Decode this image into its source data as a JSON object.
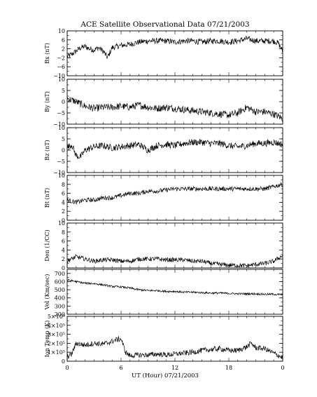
{
  "title": "ACE Satellite Observational Data   07/21/2003",
  "xlabel": "UT (Hour)   07/21/2003",
  "x_tick_labels": [
    "0",
    "6",
    "12",
    "18",
    "0"
  ],
  "colors": {
    "line": "#000000",
    "axes": "#000000",
    "background": "#ffffff"
  },
  "chart_data": [
    {
      "type": "line",
      "name": "Bx",
      "ylabel": "Bx (nT)",
      "xlim": [
        0,
        24
      ],
      "ylim": [
        -10,
        10
      ],
      "yticks": [
        -10,
        -6,
        -2,
        2,
        6,
        10
      ],
      "ytick_labels": [
        "−10",
        "−6",
        "−2",
        "2",
        "6",
        "10"
      ],
      "x": [
        0,
        0.5,
        1,
        1.5,
        2,
        2.5,
        3,
        3.5,
        4,
        4.5,
        5,
        5.5,
        6,
        7,
        8,
        9,
        10,
        11,
        12,
        13,
        14,
        15,
        16,
        17,
        18,
        19,
        20,
        21,
        22,
        23,
        23.5,
        24
      ],
      "values": [
        -1.5,
        -0.5,
        1.0,
        2.5,
        3.0,
        2.0,
        1.5,
        2.5,
        1.0,
        -2.0,
        2.5,
        3.0,
        3.5,
        4.0,
        5.0,
        5.5,
        5.5,
        5.5,
        5.0,
        5.5,
        5.5,
        5.0,
        5.5,
        5.5,
        5.0,
        5.5,
        6.5,
        5.5,
        5.5,
        5.5,
        4.5,
        1.0
      ],
      "noise": 1.3
    },
    {
      "type": "line",
      "name": "By",
      "ylabel": "By (nT)",
      "xlim": [
        0,
        24
      ],
      "ylim": [
        -10,
        10
      ],
      "yticks": [
        -10,
        -5,
        0,
        5,
        10
      ],
      "ytick_labels": [
        "−10",
        "−5",
        "0",
        "5",
        "10"
      ],
      "x": [
        0,
        1,
        2,
        3,
        4,
        5,
        6,
        7,
        8,
        9,
        10,
        11,
        12,
        13,
        14,
        15,
        16,
        17,
        18,
        19,
        20,
        21,
        22,
        23,
        24
      ],
      "values": [
        1.5,
        0.0,
        -2.0,
        -3.0,
        -2.5,
        -2.5,
        -2.0,
        -2.5,
        -1.5,
        -2.5,
        -3.0,
        -2.5,
        -3.0,
        -3.5,
        -4.0,
        -4.5,
        -5.0,
        -5.5,
        -6.0,
        -5.0,
        -2.5,
        -4.5,
        -4.5,
        -5.5,
        -7.5
      ],
      "noise": 1.6
    },
    {
      "type": "line",
      "name": "Bz",
      "ylabel": "Bz (nT)",
      "xlim": [
        0,
        24
      ],
      "ylim": [
        -10,
        10
      ],
      "yticks": [
        -10,
        -5,
        0,
        5,
        10
      ],
      "ytick_labels": [
        "−10",
        "−5",
        "0",
        "5",
        "10"
      ],
      "x": [
        0,
        0.5,
        1,
        1.5,
        2,
        3,
        4,
        5,
        6,
        7,
        8,
        9,
        10,
        11,
        12,
        13,
        14,
        15,
        16,
        17,
        18,
        19,
        20,
        21,
        22,
        23,
        24
      ],
      "values": [
        1.0,
        2.5,
        -2.5,
        -3.0,
        0.0,
        1.5,
        2.0,
        1.0,
        1.5,
        2.0,
        2.5,
        0.0,
        2.0,
        2.5,
        2.0,
        3.0,
        3.5,
        3.5,
        3.0,
        3.0,
        2.0,
        1.5,
        2.0,
        3.0,
        3.0,
        3.5,
        2.5
      ],
      "noise": 1.5
    },
    {
      "type": "line",
      "name": "Bt",
      "ylabel": "Bt (nT)",
      "xlim": [
        0,
        24
      ],
      "ylim": [
        0,
        10
      ],
      "yticks": [
        0,
        2,
        4,
        6,
        8,
        10
      ],
      "ytick_labels": [
        "0",
        "2",
        "4",
        "6",
        "8",
        "10"
      ],
      "x": [
        0,
        1,
        2,
        3,
        4,
        5,
        6,
        7,
        8,
        9,
        10,
        12,
        14,
        16,
        18,
        20,
        22,
        23,
        24
      ],
      "values": [
        4.5,
        4.0,
        4.5,
        4.5,
        5.0,
        5.0,
        5.5,
        6.0,
        6.0,
        6.5,
        6.5,
        7.0,
        7.0,
        7.0,
        7.0,
        7.0,
        7.0,
        7.5,
        8.0
      ],
      "noise": 0.5
    },
    {
      "type": "line",
      "name": "Den",
      "ylabel": "Den (1/CC)",
      "xlim": [
        0,
        24
      ],
      "ylim": [
        0,
        10
      ],
      "yticks": [
        0,
        2,
        4,
        6,
        8,
        10
      ],
      "ytick_labels": [
        "0",
        "2",
        "4",
        "6",
        "8",
        "10"
      ],
      "x": [
        0,
        1,
        2,
        3,
        4,
        5,
        6,
        7,
        8,
        9,
        10,
        11,
        12,
        13,
        14,
        15,
        16,
        17,
        18,
        19,
        20,
        21,
        22,
        23,
        24
      ],
      "values": [
        1.5,
        2.5,
        2.0,
        1.5,
        1.8,
        1.8,
        1.5,
        1.5,
        2.0,
        2.0,
        2.0,
        1.8,
        1.8,
        1.8,
        1.5,
        1.5,
        1.0,
        0.8,
        0.6,
        0.6,
        0.5,
        0.8,
        1.0,
        1.5,
        2.8
      ],
      "noise": 0.5
    },
    {
      "type": "line",
      "name": "Vel",
      "ylabel": "Vel (Km/sec)",
      "xlim": [
        0,
        24
      ],
      "ylim": [
        200,
        750
      ],
      "yticks": [
        200,
        300,
        400,
        500,
        600,
        700
      ],
      "ytick_labels": [
        "200",
        "300",
        "400",
        "500",
        "600",
        "700"
      ],
      "x": [
        0,
        1,
        2,
        3,
        4,
        5,
        6,
        7,
        8,
        9,
        10,
        11,
        12,
        13,
        14,
        15,
        16,
        17,
        18,
        19,
        20,
        21,
        22,
        23,
        24
      ],
      "values": [
        620,
        600,
        580,
        575,
        560,
        540,
        535,
        520,
        500,
        490,
        490,
        480,
        480,
        470,
        470,
        465,
        460,
        460,
        455,
        450,
        450,
        450,
        445,
        445,
        440
      ],
      "noise": 12
    },
    {
      "type": "line",
      "name": "Ion Temp",
      "ylabel": "Ion Temp (K)",
      "xlim": [
        0,
        24
      ],
      "ylim": [
        0,
        500000
      ],
      "yticks": [
        0,
        100000,
        200000,
        300000,
        400000,
        500000
      ],
      "ytick_labels": [
        "0",
        "1×10⁵",
        "2×10⁵",
        "3×10⁵",
        "4×10⁵",
        "5×10⁵"
      ],
      "x": [
        0,
        0.5,
        1,
        2,
        3,
        4,
        5,
        5.5,
        6,
        6.5,
        7,
        8,
        9,
        10,
        11,
        12,
        13,
        14,
        15,
        16,
        17,
        18,
        19,
        20,
        20.5,
        21,
        22,
        23,
        24
      ],
      "values": [
        50000,
        80000,
        200000,
        180000,
        200000,
        190000,
        220000,
        240000,
        250000,
        100000,
        60000,
        70000,
        70000,
        80000,
        70000,
        80000,
        90000,
        100000,
        120000,
        130000,
        140000,
        120000,
        120000,
        160000,
        200000,
        150000,
        140000,
        90000,
        40000
      ],
      "noise": 30000
    }
  ]
}
